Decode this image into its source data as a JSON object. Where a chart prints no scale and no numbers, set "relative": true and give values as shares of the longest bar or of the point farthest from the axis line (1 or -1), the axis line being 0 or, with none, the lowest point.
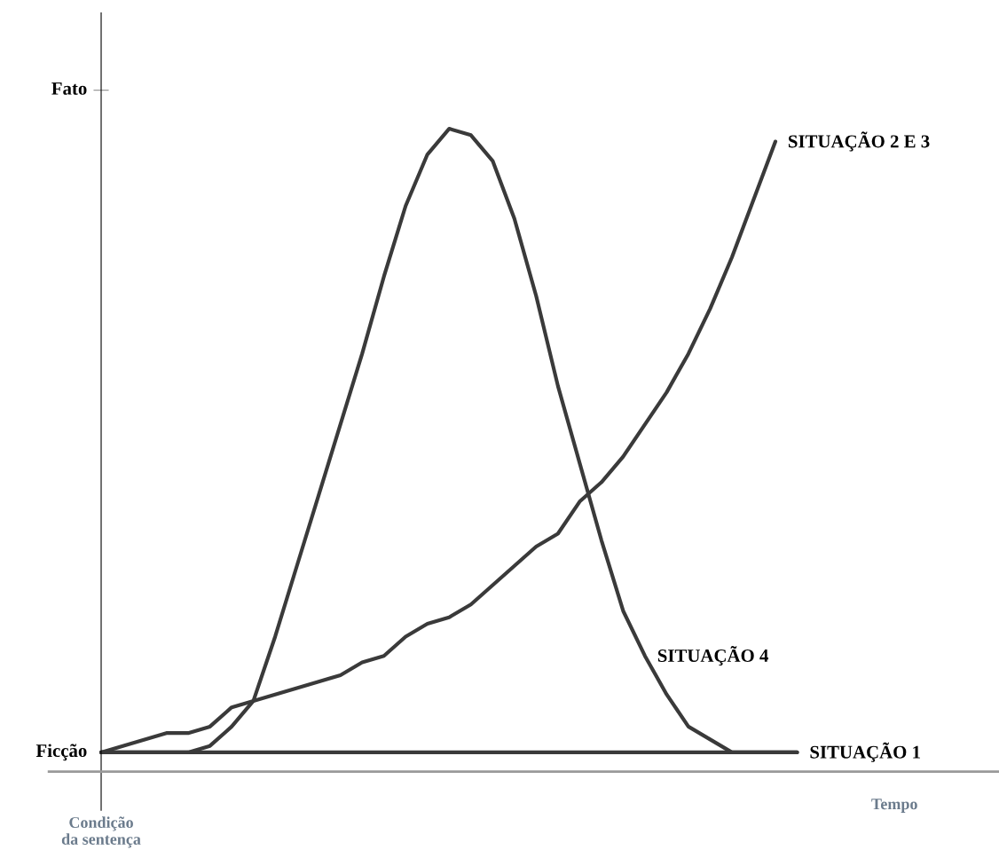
{
  "chart_data": {
    "type": "line",
    "relative": true,
    "categories": [
      null,
      null,
      null,
      null,
      null,
      null,
      null,
      null,
      null,
      null,
      null,
      null,
      null,
      null,
      null,
      null,
      null,
      null,
      null,
      null,
      null,
      null,
      null,
      null,
      null,
      null,
      null,
      null,
      null,
      null,
      null,
      null,
      null
    ],
    "series": [
      {
        "name": "SITUAÇÃO 1",
        "color": "#3a3a3a",
        "values": [
          0.03,
          0.03,
          0.03,
          0.03,
          0.03,
          0.03,
          0.03,
          0.03,
          0.03,
          0.03,
          0.03,
          0.03,
          0.03,
          0.03,
          0.03,
          0.03,
          0.03,
          0.03,
          0.03,
          0.03,
          0.03,
          0.03,
          0.03,
          0.03,
          0.03,
          0.03,
          0.03,
          0.03,
          0.03,
          0.03,
          0.03,
          0.03,
          0.03
        ]
      },
      {
        "name": "SITUAÇÃO 2 E 3",
        "color": "#3a3a3a",
        "values": [
          0.03,
          0.04,
          0.05,
          0.06,
          0.06,
          0.07,
          0.1,
          0.11,
          0.12,
          0.13,
          0.14,
          0.15,
          0.17,
          0.18,
          0.21,
          0.23,
          0.24,
          0.26,
          0.29,
          0.32,
          0.35,
          0.37,
          0.42,
          0.45,
          0.49,
          0.54,
          0.59,
          0.65,
          0.72,
          0.8,
          0.89,
          0.98,
          null
        ]
      },
      {
        "name": "SITUAÇÃO 4",
        "color": "#3a3a3a",
        "values": [
          0.03,
          0.03,
          0.03,
          0.03,
          0.03,
          0.04,
          0.07,
          0.11,
          0.21,
          0.32,
          0.43,
          0.54,
          0.65,
          0.77,
          0.88,
          0.96,
          1,
          0.99,
          0.95,
          0.86,
          0.74,
          0.6,
          0.48,
          0.36,
          0.25,
          0.18,
          0.12,
          0.07,
          0.05,
          0.03,
          0.03,
          0.03,
          0.03
        ]
      }
    ],
    "xlabel": "Tempo",
    "annotations": [
      "Fato",
      "Ficção",
      "Condição\nda sentença"
    ],
    "grid": false,
    "legend": false,
    "marker": "none",
    "line_style": "solid"
  }
}
